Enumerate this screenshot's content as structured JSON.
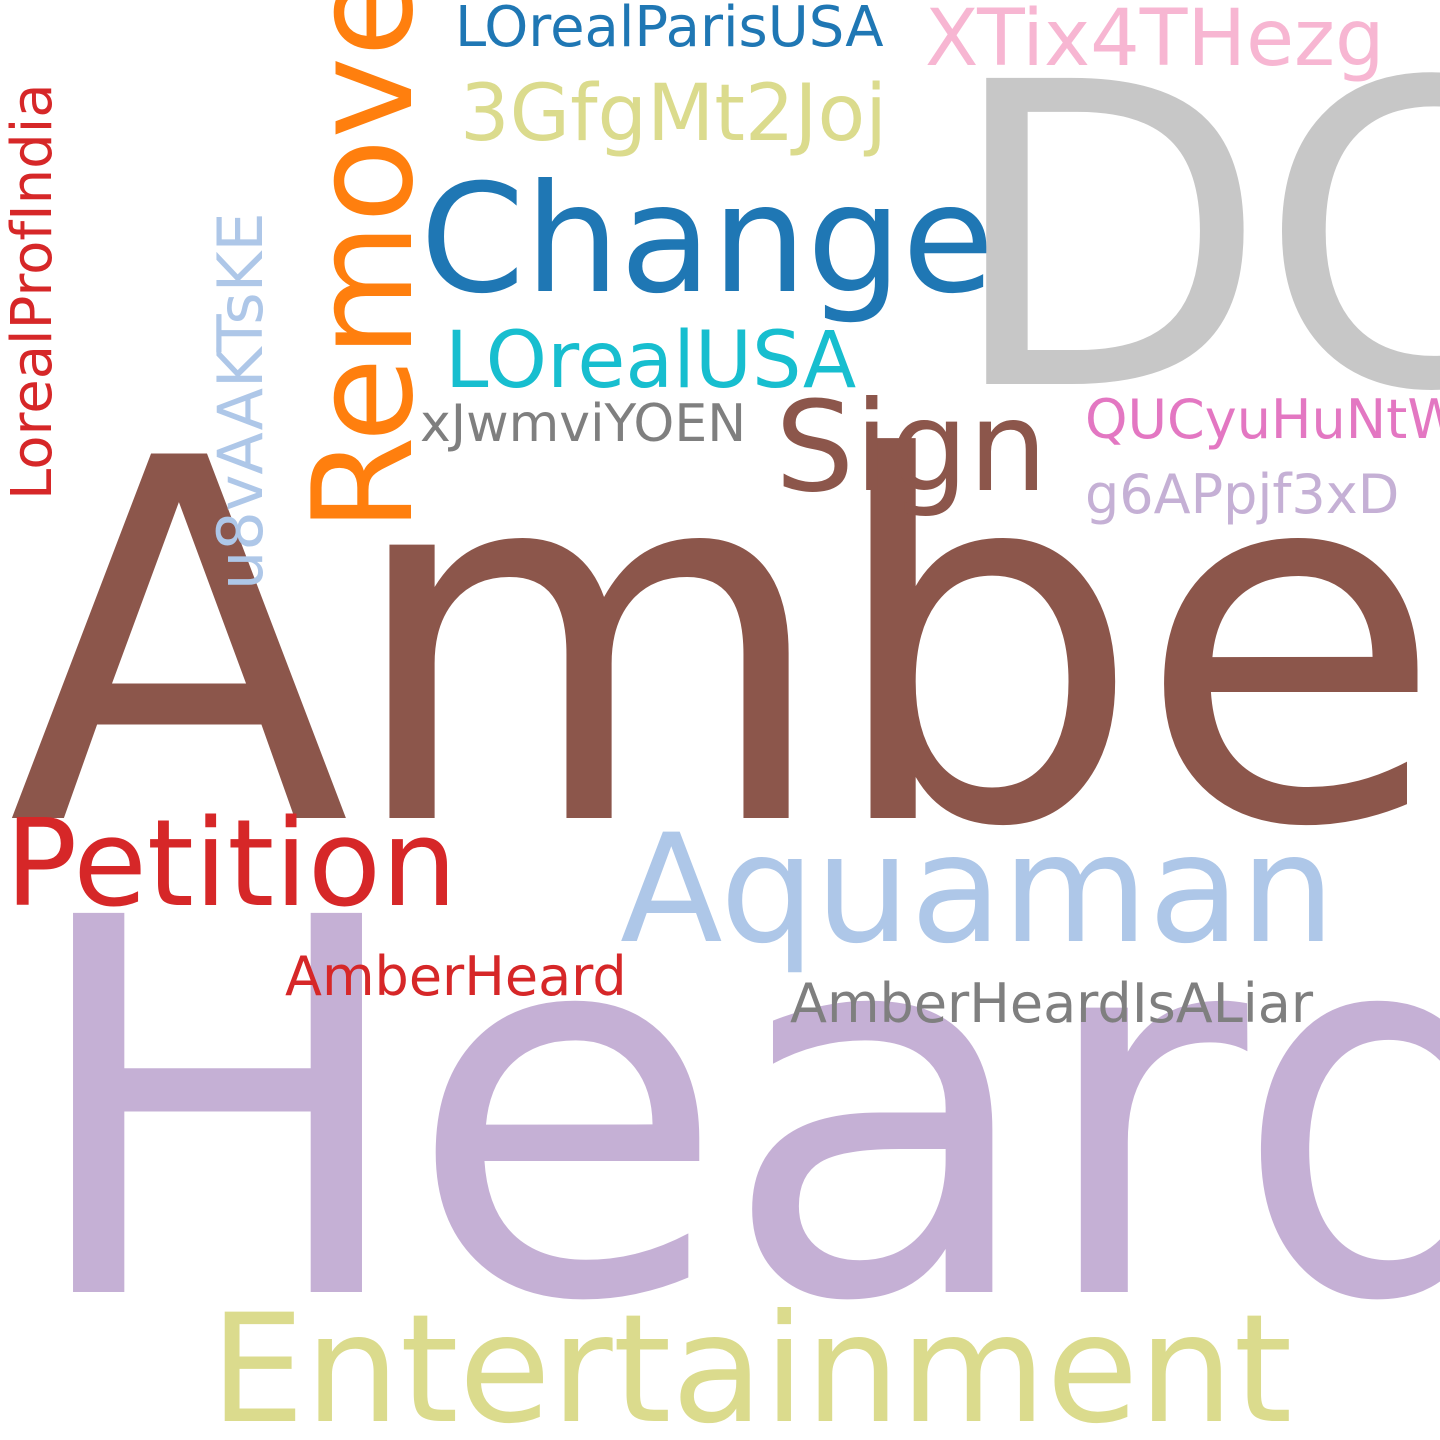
{
  "wordcloud": {
    "background": "#ffffff",
    "words": [
      {
        "id": "amber",
        "text": "Amber",
        "color": "#8c564b",
        "orientation": "horizontal"
      },
      {
        "id": "heard",
        "text": "Heard",
        "color": "#c5b0d5",
        "orientation": "horizontal"
      },
      {
        "id": "dc",
        "text": "DC",
        "color": "#c7c7c7",
        "orientation": "horizontal"
      },
      {
        "id": "entertainment",
        "text": "Entertainment",
        "color": "#dbdb8d",
        "orientation": "horizontal"
      },
      {
        "id": "change",
        "text": "Change",
        "color": "#1f77b4",
        "orientation": "horizontal"
      },
      {
        "id": "aquaman",
        "text": "Aquaman",
        "color": "#aec7e8",
        "orientation": "horizontal"
      },
      {
        "id": "petition",
        "text": "Petition",
        "color": "#d62728",
        "orientation": "horizontal"
      },
      {
        "id": "sign",
        "text": "Sign",
        "color": "#8c564b",
        "orientation": "horizontal"
      },
      {
        "id": "remove",
        "text": "Remove",
        "color": "#ff7f0e",
        "orientation": "vertical"
      },
      {
        "id": "lorealusa",
        "text": "LOrealUSA",
        "color": "#17becf",
        "orientation": "horizontal"
      },
      {
        "id": "3gfg",
        "text": "3GfgMt2Joj",
        "color": "#dbdb8d",
        "orientation": "horizontal"
      },
      {
        "id": "xtix",
        "text": "XTix4THezg",
        "color": "#f7b6d2",
        "orientation": "horizontal"
      },
      {
        "id": "lorealparis",
        "text": "LOrealParisUSA",
        "color": "#1f77b4",
        "orientation": "horizontal"
      },
      {
        "id": "xjwm",
        "text": "xJwmviYOEN",
        "color": "#7f7f7f",
        "orientation": "horizontal"
      },
      {
        "id": "qucy",
        "text": "QUCyuHuNtW",
        "color": "#e377c2",
        "orientation": "horizontal"
      },
      {
        "id": "g6ap",
        "text": "g6APpjf3xD",
        "color": "#c5b0d5",
        "orientation": "horizontal"
      },
      {
        "id": "amberheard2",
        "text": "AmberHeard",
        "color": "#d62728",
        "orientation": "horizontal"
      },
      {
        "id": "liar",
        "text": "AmberHeardIsALiar",
        "color": "#7f7f7f",
        "orientation": "horizontal"
      },
      {
        "id": "u8v",
        "text": "u8vAAKTsKE",
        "color": "#aec7e8",
        "orientation": "vertical"
      },
      {
        "id": "lorealprof",
        "text": "LorealProfIndia",
        "color": "#d62728",
        "orientation": "vertical"
      }
    ]
  }
}
